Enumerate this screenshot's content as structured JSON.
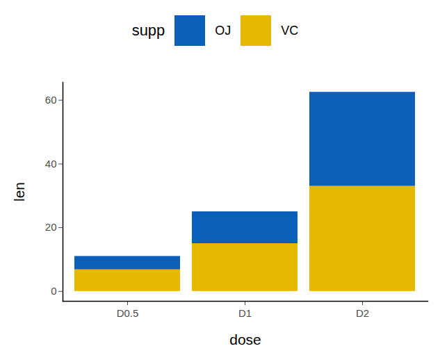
{
  "chart_data": {
    "type": "bar",
    "stacked": true,
    "x_label": "dose",
    "y_label": "len",
    "categories": [
      "D0.5",
      "D1",
      "D2"
    ],
    "series": [
      {
        "name": "OJ",
        "color": "#0C5FB8",
        "values": [
          4.2,
          10,
          29.5
        ]
      },
      {
        "name": "VC",
        "color": "#E7B800",
        "values": [
          6.8,
          15,
          33
        ]
      }
    ],
    "ylim": [
      -3.1,
      65.6
    ],
    "yticks": [
      0,
      20,
      40,
      60
    ],
    "grid": false,
    "legend": "top",
    "legend_title": "supp"
  }
}
